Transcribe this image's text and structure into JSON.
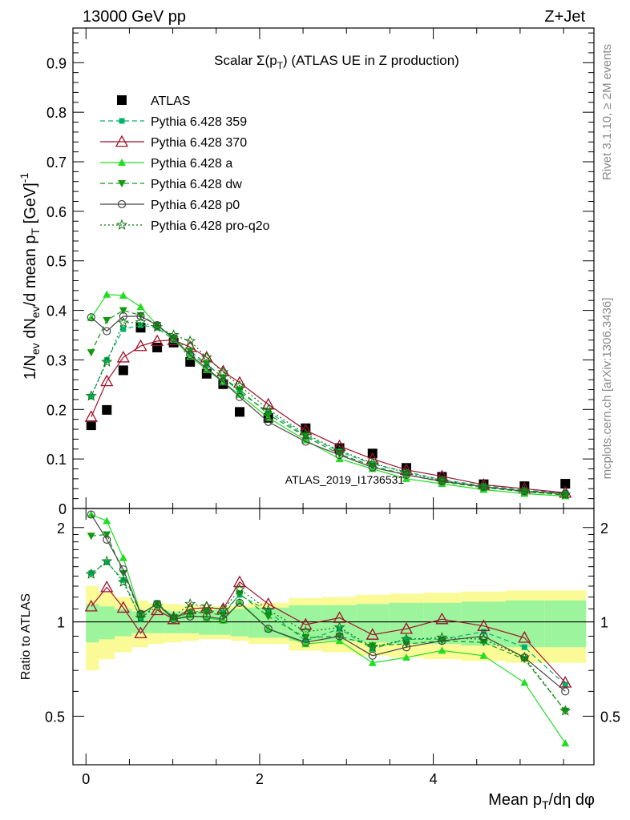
{
  "header": {
    "left": "13000 GeV pp",
    "right": "Z+Jet",
    "side_right_top": "Rivet 3.1.10, ≥ 2M events",
    "side_right_bottom": "mcplots.cern.ch [arXiv:1306.3436]",
    "watermark": "ATLAS_2019_I1736531"
  },
  "chart_data": [
    {
      "type": "scatter",
      "panel": "main",
      "title": "Scalar Σ(p_T) (ATLAS UE in Z production)",
      "title_parts": {
        "prefix": "Scalar Σ(p",
        "sub": "T",
        "suffix": ") (ATLAS UE in Z production)"
      },
      "ylabel": "1/N_ev dN_ev/d mean p_T [GeV]^-1",
      "xlabel": "Mean p_T/dη dφ",
      "xlim": [
        -0.15,
        5.85
      ],
      "ylim": [
        0,
        0.97
      ],
      "yticks": [
        "0",
        "0.1",
        "0.2",
        "0.3",
        "0.4",
        "0.5",
        "0.6",
        "0.7",
        "0.8",
        "0.9"
      ],
      "ytick_values": [
        0,
        0.1,
        0.2,
        0.3,
        0.4,
        0.5,
        0.6,
        0.7,
        0.8,
        0.9
      ],
      "x": [
        0.06,
        0.24,
        0.43,
        0.63,
        0.82,
        1.01,
        1.2,
        1.39,
        1.58,
        1.77,
        2.1,
        2.53,
        2.92,
        3.3,
        3.69,
        4.1,
        4.58,
        5.05,
        5.52
      ],
      "legend_placement": "top-left",
      "series": [
        {
          "name": "ATLAS",
          "color": "#000000",
          "marker": "square",
          "line": "none",
          "values": [
            0.168,
            0.199,
            0.279,
            0.365,
            0.325,
            0.335,
            0.296,
            0.272,
            0.251,
            0.195,
            0.183,
            0.162,
            0.122,
            0.111,
            0.082,
            0.064,
            0.049,
            0.045,
            0.05
          ]
        },
        {
          "name": "Pythia 6.428 359",
          "color": "#00b36b",
          "marker": "smallsquare",
          "line": "dashed",
          "values": [
            0.226,
            0.3,
            0.362,
            0.37,
            0.365,
            0.34,
            0.312,
            0.29,
            0.265,
            0.235,
            0.195,
            0.147,
            0.115,
            0.09,
            0.074,
            0.058,
            0.046,
            0.037,
            0.031
          ]
        },
        {
          "name": "Pythia 6.428 370",
          "color": "#a0102a",
          "marker": "triangle-open",
          "line": "solid",
          "values": [
            0.185,
            0.257,
            0.305,
            0.328,
            0.338,
            0.34,
            0.326,
            0.305,
            0.277,
            0.254,
            0.21,
            0.158,
            0.126,
            0.1,
            0.078,
            0.065,
            0.048,
            0.04,
            0.032
          ]
        },
        {
          "name": "Pythia 6.428 a",
          "color": "#22dd22",
          "marker": "triangle-filled",
          "line": "solid",
          "values": [
            0.385,
            0.432,
            0.43,
            0.407,
            0.37,
            0.342,
            0.307,
            0.28,
            0.255,
            0.23,
            0.183,
            0.138,
            0.1,
            0.08,
            0.06,
            0.05,
            0.038,
            0.03,
            0.025
          ]
        },
        {
          "name": "Pythia 6.428 dw",
          "color": "#119911",
          "marker": "triangle-down",
          "line": "dashed",
          "values": [
            0.315,
            0.38,
            0.4,
            0.39,
            0.37,
            0.345,
            0.318,
            0.292,
            0.264,
            0.24,
            0.19,
            0.145,
            0.11,
            0.086,
            0.068,
            0.054,
            0.042,
            0.034,
            0.027
          ]
        },
        {
          "name": "Pythia 6.428 p0",
          "color": "#444444",
          "marker": "circle-open",
          "line": "solid",
          "values": [
            0.386,
            0.358,
            0.388,
            0.388,
            0.37,
            0.344,
            0.31,
            0.283,
            0.256,
            0.225,
            0.175,
            0.135,
            0.108,
            0.083,
            0.068,
            0.055,
            0.044,
            0.035,
            0.03
          ]
        },
        {
          "name": "Pythia 6.428 pro-q2o",
          "color": "#117711",
          "marker": "star",
          "line": "dotted",
          "values": [
            0.227,
            0.296,
            0.375,
            0.376,
            0.366,
            0.35,
            0.338,
            0.305,
            0.275,
            0.248,
            0.2,
            0.15,
            0.117,
            0.092,
            0.072,
            0.057,
            0.044,
            0.035,
            0.028
          ]
        }
      ]
    },
    {
      "type": "line",
      "panel": "ratio",
      "ylabel": "Ratio to ATLAS",
      "xlabel": "Mean p_T/dη dφ",
      "xlim": [
        -0.15,
        5.85
      ],
      "ylim": [
        0.35,
        2.3
      ],
      "yticks": [
        "0.5",
        "1",
        "2"
      ],
      "ytick_values": [
        0.5,
        1,
        2
      ],
      "xticks": [
        "0",
        "2",
        "4"
      ],
      "xtick_values": [
        0,
        2,
        4
      ],
      "x_edges": [
        0.0,
        0.15,
        0.33,
        0.53,
        0.72,
        0.91,
        1.1,
        1.3,
        1.49,
        1.67,
        1.87,
        2.34,
        2.72,
        3.11,
        3.49,
        3.89,
        4.32,
        4.83,
        5.28,
        5.76
      ],
      "band_inner": [
        0.14,
        0.12,
        0.1,
        0.08,
        0.08,
        0.08,
        0.08,
        0.09,
        0.09,
        0.1,
        0.11,
        0.13,
        0.13,
        0.14,
        0.15,
        0.15,
        0.16,
        0.17,
        0.17
      ],
      "band_outer": [
        0.3,
        0.24,
        0.2,
        0.17,
        0.15,
        0.14,
        0.13,
        0.12,
        0.12,
        0.13,
        0.15,
        0.19,
        0.2,
        0.22,
        0.23,
        0.24,
        0.25,
        0.26,
        0.26
      ],
      "band_colors": {
        "inner": "#9cf59c",
        "outer": "#fafa96"
      },
      "series": [
        {
          "name": "Pythia 6.428 359",
          "color": "#00b36b",
          "marker": "smallsquare",
          "line": "dashed",
          "values": [
            1.43,
            1.55,
            1.36,
            1.02,
            1.15,
            1.03,
            1.07,
            1.09,
            1.07,
            1.22,
            1.08,
            0.87,
            0.95,
            0.82,
            0.88,
            0.88,
            0.93,
            0.83,
            0.63
          ]
        },
        {
          "name": "Pythia 6.428 370",
          "color": "#a0102a",
          "marker": "triangle-open",
          "line": "solid",
          "values": [
            1.12,
            1.29,
            1.11,
            0.92,
            1.09,
            1.02,
            1.1,
            1.11,
            1.1,
            1.34,
            1.14,
            0.98,
            1.03,
            0.91,
            0.95,
            1.02,
            0.97,
            0.89,
            0.64
          ]
        },
        {
          "name": "Pythia 6.428 a",
          "color": "#22dd22",
          "marker": "triangle-filled",
          "line": "solid",
          "values": [
            2.2,
            2.1,
            1.6,
            1.06,
            1.14,
            1.02,
            1.05,
            1.03,
            1.01,
            1.16,
            0.95,
            0.85,
            0.87,
            0.74,
            0.77,
            0.81,
            0.78,
            0.64,
            0.41
          ]
        },
        {
          "name": "Pythia 6.428 dw",
          "color": "#119911",
          "marker": "triangle-down",
          "line": "dashed",
          "values": [
            1.88,
            1.9,
            1.43,
            1.06,
            1.14,
            1.03,
            1.07,
            1.07,
            1.05,
            1.23,
            1.04,
            0.89,
            0.9,
            0.84,
            0.85,
            0.87,
            0.86,
            0.76,
            0.52
          ]
        },
        {
          "name": "Pythia 6.428 p0",
          "color": "#444444",
          "marker": "circle-open",
          "line": "solid",
          "values": [
            2.2,
            1.83,
            1.47,
            1.06,
            1.14,
            1.02,
            1.04,
            1.04,
            1.02,
            1.15,
            0.95,
            0.86,
            0.9,
            0.78,
            0.83,
            0.87,
            0.9,
            0.77,
            0.6
          ]
        },
        {
          "name": "Pythia 6.428 pro-q2o",
          "color": "#117711",
          "marker": "star",
          "line": "dotted",
          "values": [
            1.42,
            1.56,
            1.34,
            1.03,
            1.12,
            1.04,
            1.14,
            1.12,
            1.09,
            1.27,
            1.09,
            0.93,
            0.96,
            0.83,
            0.88,
            0.89,
            0.88,
            0.77,
            0.52
          ]
        }
      ]
    }
  ]
}
